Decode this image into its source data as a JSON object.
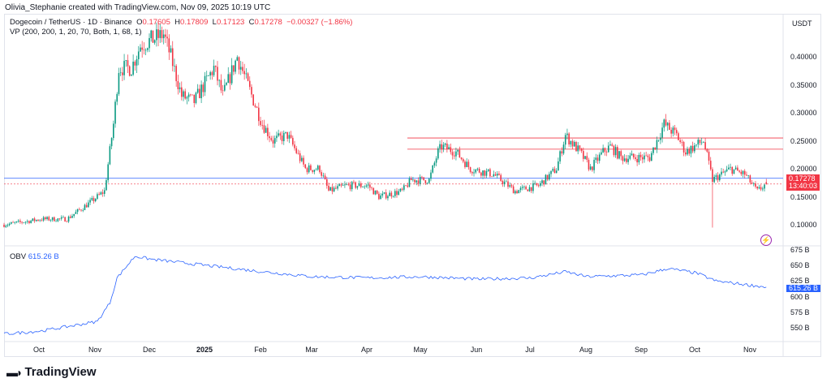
{
  "credit": "Olivia_Stephanie created with TradingView.com, Nov 09, 2025 10:19 UTC",
  "symbol": "Dogecoin / TetherUS · 1D · Binance",
  "ohlc": {
    "o": "O",
    "o_val": "0.17605",
    "h": "H",
    "h_val": "0.17809",
    "l": "L",
    "l_val": "0.17123",
    "c": "C",
    "c_val": "0.17278",
    "change": "−0.00327 (−1.86%)"
  },
  "indicator": "VP (200, 200, 1, 20, 70, Both, 1, 68, 1)",
  "obv": {
    "label": "OBV",
    "value": "615.26 B"
  },
  "currency": "USDT",
  "last_price": "0.17278",
  "countdown": "13:40:03",
  "brand": "TradingView",
  "colors": {
    "up": "#089981",
    "down": "#f23645",
    "obv": "#2962ff",
    "resistance": "#f23645",
    "support": "#2962ff"
  },
  "chart_data": [
    {
      "type": "candlestick",
      "ylim": [
        0.07,
        0.48
      ],
      "y_ticks": [
        "0.40000",
        "0.35000",
        "0.30000",
        "0.25000",
        "0.20000",
        "0.15000",
        "0.10000"
      ],
      "x_ticks": [
        "Oct",
        "Nov",
        "Dec",
        "2025",
        "Feb",
        "Mar",
        "Apr",
        "May",
        "Jun",
        "Jul",
        "Aug",
        "Sep",
        "Oct",
        "Nov"
      ],
      "horizontal_lines": [
        {
          "price": 0.255,
          "color": "red"
        },
        {
          "price": 0.235,
          "color": "red"
        },
        {
          "price": 0.183,
          "color": "blue"
        }
      ],
      "approx_close": [
        [
          "2024-09-10",
          0.1
        ],
        [
          "2024-10-01",
          0.11
        ],
        [
          "2024-10-15",
          0.11
        ],
        [
          "2024-10-28",
          0.14
        ],
        [
          "2024-11-05",
          0.16
        ],
        [
          "2024-11-10",
          0.28
        ],
        [
          "2024-11-13",
          0.38
        ],
        [
          "2024-11-20",
          0.38
        ],
        [
          "2024-11-25",
          0.42
        ],
        [
          "2024-12-01",
          0.43
        ],
        [
          "2024-12-08",
          0.44
        ],
        [
          "2024-12-12",
          0.4
        ],
        [
          "2024-12-18",
          0.33
        ],
        [
          "2024-12-25",
          0.32
        ],
        [
          "2025-01-05",
          0.38
        ],
        [
          "2025-01-10",
          0.33
        ],
        [
          "2025-01-18",
          0.4
        ],
        [
          "2025-01-25",
          0.34
        ],
        [
          "2025-02-01",
          0.28
        ],
        [
          "2025-02-07",
          0.25
        ],
        [
          "2025-02-15",
          0.26
        ],
        [
          "2025-02-25",
          0.2
        ],
        [
          "2025-03-05",
          0.2
        ],
        [
          "2025-03-10",
          0.16
        ],
        [
          "2025-03-20",
          0.17
        ],
        [
          "2025-04-01",
          0.17
        ],
        [
          "2025-04-07",
          0.15
        ],
        [
          "2025-04-20",
          0.16
        ],
        [
          "2025-04-25",
          0.18
        ],
        [
          "2025-05-05",
          0.18
        ],
        [
          "2025-05-10",
          0.23
        ],
        [
          "2025-05-12",
          0.24
        ],
        [
          "2025-05-20",
          0.23
        ],
        [
          "2025-05-28",
          0.2
        ],
        [
          "2025-06-10",
          0.19
        ],
        [
          "2025-06-22",
          0.16
        ],
        [
          "2025-07-05",
          0.17
        ],
        [
          "2025-07-15",
          0.2
        ],
        [
          "2025-07-20",
          0.26
        ],
        [
          "2025-07-28",
          0.23
        ],
        [
          "2025-08-03",
          0.2
        ],
        [
          "2025-08-10",
          0.23
        ],
        [
          "2025-08-14",
          0.24
        ],
        [
          "2025-08-20",
          0.22
        ],
        [
          "2025-08-28",
          0.22
        ],
        [
          "2025-09-05",
          0.22
        ],
        [
          "2025-09-13",
          0.28
        ],
        [
          "2025-09-20",
          0.26
        ],
        [
          "2025-09-25",
          0.23
        ],
        [
          "2025-10-05",
          0.25
        ],
        [
          "2025-10-10",
          0.18
        ],
        [
          "2025-10-20",
          0.2
        ],
        [
          "2025-10-28",
          0.19
        ],
        [
          "2025-11-04",
          0.16
        ],
        [
          "2025-11-09",
          0.17278
        ]
      ]
    },
    {
      "type": "line",
      "name": "OBV",
      "ylim": [
        530,
        690
      ],
      "y_ticks": [
        "675 B",
        "650 B",
        "625 B",
        "600 B",
        "575 B",
        "550 B"
      ],
      "points": [
        [
          "2024-09-10",
          540
        ],
        [
          "2024-10-01",
          545
        ],
        [
          "2024-11-01",
          560
        ],
        [
          "2024-11-08",
          590
        ],
        [
          "2024-11-12",
          630
        ],
        [
          "2024-11-22",
          665
        ],
        [
          "2024-12-01",
          660
        ],
        [
          "2025-01-01",
          650
        ],
        [
          "2025-02-01",
          640
        ],
        [
          "2025-03-01",
          632
        ],
        [
          "2025-04-01",
          630
        ],
        [
          "2025-05-01",
          632
        ],
        [
          "2025-06-01",
          628
        ],
        [
          "2025-07-01",
          630
        ],
        [
          "2025-07-20",
          640
        ],
        [
          "2025-08-01",
          632
        ],
        [
          "2025-09-01",
          635
        ],
        [
          "2025-09-15",
          645
        ],
        [
          "2025-10-01",
          638
        ],
        [
          "2025-10-12",
          625
        ],
        [
          "2025-11-09",
          615.26
        ]
      ]
    }
  ]
}
